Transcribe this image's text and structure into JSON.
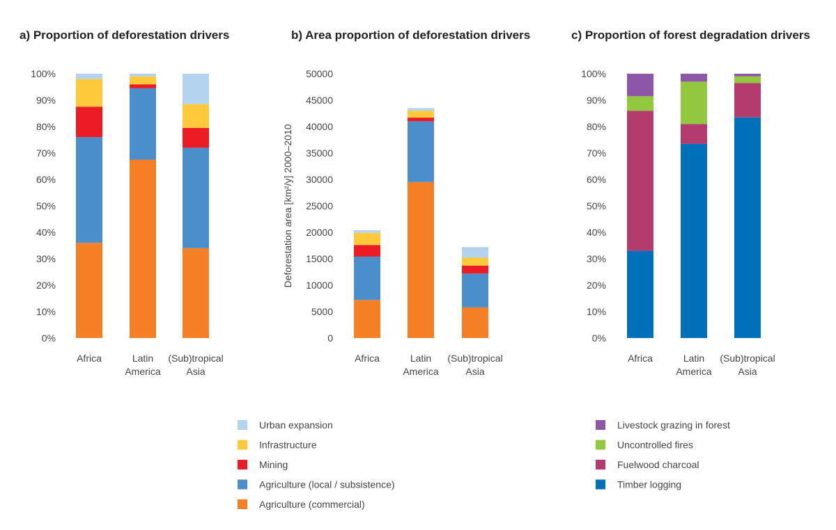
{
  "colors": {
    "Urban expansion": "#b3d3ee",
    "Infrastructure": "#fec93a",
    "Mining": "#ec1c24",
    "Agriculture (local / subsistence)": "#4a8ecb",
    "Agriculture (commercial)": "#f47f24",
    "Livestock grazing in forest": "#8e56a6",
    "Uncontrolled fires": "#92c83e",
    "Fuelwood charcoal": "#b43b6e",
    "Timber logging": "#0070bb"
  },
  "legend_left": [
    "Urban expansion",
    "Infrastructure",
    "Mining",
    "Agriculture (local / subsistence)",
    "Agriculture (commercial)"
  ],
  "legend_right": [
    "Livestock grazing in forest",
    "Uncontrolled fires",
    "Fuelwood charcoal",
    "Timber logging"
  ],
  "chart_data": [
    {
      "type": "bar",
      "stacked": true,
      "title": "a) Proportion of deforestation drivers",
      "ylabel": "",
      "ylim": [
        0,
        100
      ],
      "yticks": [
        "0%",
        "10%",
        "20%",
        "30%",
        "40%",
        "50%",
        "60%",
        "70%",
        "80%",
        "90%",
        "100%"
      ],
      "categories": [
        [
          "Africa"
        ],
        [
          "Latin",
          "America"
        ],
        [
          "(Sub)tropical",
          "Asia"
        ]
      ],
      "series": [
        {
          "name": "Agriculture (commercial)",
          "values": [
            36,
            67.5,
            34
          ]
        },
        {
          "name": "Agriculture (local / subsistence)",
          "values": [
            40,
            27,
            38
          ]
        },
        {
          "name": "Mining",
          "values": [
            11.5,
            1.5,
            7.5
          ]
        },
        {
          "name": "Infrastructure",
          "values": [
            10.5,
            3,
            9
          ]
        },
        {
          "name": "Urban expansion",
          "values": [
            2,
            1,
            11.5
          ]
        }
      ]
    },
    {
      "type": "bar",
      "stacked": true,
      "title": "b) Area proportion of deforestation drivers",
      "ylabel": "Deforestation area [km²/y] 2000–2010",
      "ylim": [
        0,
        50000
      ],
      "yticks": [
        "0",
        "5000",
        "10000",
        "15000",
        "20000",
        "25000",
        "30000",
        "35000",
        "40000",
        "45000",
        "50000"
      ],
      "categories": [
        [
          "Africa"
        ],
        [
          "Latin",
          "America"
        ],
        [
          "(Sub)tropical",
          "Asia"
        ]
      ],
      "series": [
        {
          "name": "Agriculture (commercial)",
          "values": [
            7200,
            29500,
            5800
          ]
        },
        {
          "name": "Agriculture (local / subsistence)",
          "values": [
            8200,
            11500,
            6400
          ]
        },
        {
          "name": "Mining",
          "values": [
            2200,
            700,
            1500
          ]
        },
        {
          "name": "Infrastructure",
          "values": [
            2300,
            1300,
            1500
          ]
        },
        {
          "name": "Urban expansion",
          "values": [
            500,
            500,
            2000
          ]
        }
      ]
    },
    {
      "type": "bar",
      "stacked": true,
      "title": "c) Proportion of forest degradation drivers",
      "ylabel": "",
      "ylim": [
        0,
        100
      ],
      "yticks": [
        "0%",
        "10%",
        "20%",
        "30%",
        "40%",
        "50%",
        "60%",
        "70%",
        "80%",
        "90%",
        "100%"
      ],
      "categories": [
        [
          "Africa"
        ],
        [
          "Latin",
          "America"
        ],
        [
          "(Sub)tropical",
          "Asia"
        ]
      ],
      "series": [
        {
          "name": "Timber logging",
          "values": [
            33,
            73.5,
            83.5
          ]
        },
        {
          "name": "Fuelwood charcoal",
          "values": [
            53,
            7.5,
            13
          ]
        },
        {
          "name": "Uncontrolled fires",
          "values": [
            5.5,
            16,
            2.5
          ]
        },
        {
          "name": "Livestock grazing in forest",
          "values": [
            8.5,
            3,
            1
          ]
        }
      ]
    }
  ]
}
